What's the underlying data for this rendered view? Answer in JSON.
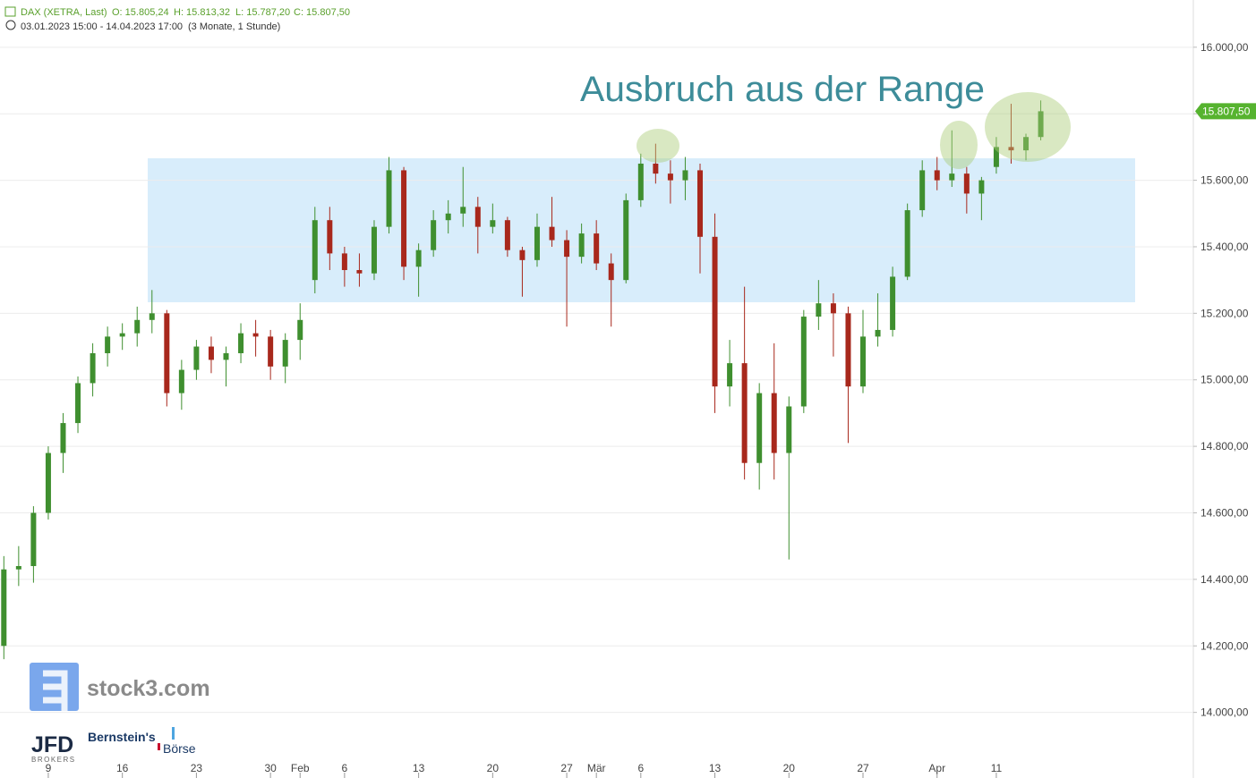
{
  "chart_data": {
    "type": "candlestick",
    "title": "DAX (XETRA, Last)",
    "ohlc_summary": [
      "O: 15.805,24",
      "H: 15.813,32",
      "L: 15.787,20",
      "C: 15.807,50"
    ],
    "period": "03.01.2023 15:00 - 14.04.2023 17:00",
    "interval": "(3 Monate, 1 Stunde)",
    "annotation": "Ausbruch aus der Range",
    "last_price": {
      "value": 15807.5,
      "label": "15.807,50"
    },
    "up_color": "#3f8f2f",
    "down_color": "#a8281c",
    "grid": true,
    "xlim": [
      0.74,
      81.3
    ],
    "ylim": [
      13870,
      16142
    ],
    "xticks": [
      {
        "value": 4,
        "label": "9"
      },
      {
        "value": 9,
        "label": "16"
      },
      {
        "value": 14,
        "label": "23"
      },
      {
        "value": 19,
        "label": "30"
      },
      {
        "value": 21,
        "label": "Feb"
      },
      {
        "value": 24,
        "label": "6"
      },
      {
        "value": 29,
        "label": "13"
      },
      {
        "value": 34,
        "label": "20"
      },
      {
        "value": 39,
        "label": "27"
      },
      {
        "value": 41,
        "label": "Mär"
      },
      {
        "value": 44,
        "label": "6"
      },
      {
        "value": 49,
        "label": "13"
      },
      {
        "value": 54,
        "label": "20"
      },
      {
        "value": 59,
        "label": "27"
      },
      {
        "value": 64,
        "label": "Apr"
      },
      {
        "value": 68,
        "label": "11"
      }
    ],
    "yticks": [
      {
        "value": 14000,
        "label": "14.000,00"
      },
      {
        "value": 14200,
        "label": "14.200,00"
      },
      {
        "value": 14400,
        "label": "14.400,00"
      },
      {
        "value": 14600,
        "label": "14.600,00"
      },
      {
        "value": 14800,
        "label": "14.800,00"
      },
      {
        "value": 15000,
        "label": "15.000,00"
      },
      {
        "value": 15200,
        "label": "15.200,00"
      },
      {
        "value": 15400,
        "label": "15.400,00"
      },
      {
        "value": 15600,
        "label": "15.600,00"
      },
      {
        "value": 15800,
        "label": "15.800,00"
      },
      {
        "value": 16000,
        "label": "16.000,00"
      }
    ],
    "x": [
      1,
      2,
      3,
      4,
      5,
      6,
      7,
      8,
      9,
      10,
      11,
      12,
      13,
      14,
      15,
      16,
      17,
      18,
      19,
      20,
      21,
      22,
      23,
      24,
      25,
      26,
      27,
      28,
      29,
      30,
      31,
      32,
      33,
      34,
      35,
      36,
      37,
      38,
      39,
      40,
      41,
      42,
      43,
      44,
      45,
      46,
      47,
      48,
      49,
      50,
      51,
      52,
      53,
      54,
      55,
      56,
      57,
      58,
      59,
      60,
      61,
      62,
      63,
      64,
      65,
      66,
      67,
      68,
      69,
      70,
      71
    ],
    "open": [
      14200,
      14430,
      14440,
      14600,
      14780,
      14870,
      14990,
      15080,
      15130,
      15140,
      15180,
      15200,
      14960,
      15030,
      15100,
      15060,
      15080,
      15140,
      15130,
      15040,
      15120,
      15300,
      15480,
      15380,
      15330,
      15320,
      15460,
      15630,
      15340,
      15390,
      15480,
      15500,
      15520,
      15460,
      15480,
      15390,
      15360,
      15460,
      15420,
      15370,
      15440,
      15350,
      15300,
      15540,
      15650,
      15620,
      15600,
      15630,
      15430,
      14980,
      15050,
      14750,
      14960,
      14780,
      14920,
      15190,
      15230,
      15200,
      14980,
      15130,
      15150,
      15310,
      15510,
      15630,
      15600,
      15620,
      15560,
      15640,
      15700,
      15690,
      15730
    ],
    "high": [
      14470,
      14500,
      14620,
      14800,
      14900,
      15010,
      15110,
      15160,
      15170,
      15220,
      15270,
      15210,
      15060,
      15120,
      15130,
      15100,
      15170,
      15180,
      15150,
      15140,
      15230,
      15520,
      15520,
      15400,
      15380,
      15480,
      15670,
      15640,
      15410,
      15510,
      15540,
      15640,
      15550,
      15530,
      15490,
      15400,
      15500,
      15550,
      15450,
      15470,
      15480,
      15380,
      15560,
      15680,
      15710,
      15660,
      15670,
      15650,
      15500,
      15120,
      15280,
      14990,
      15110,
      14950,
      15210,
      15300,
      15260,
      15220,
      15210,
      15260,
      15340,
      15530,
      15660,
      15670,
      15750,
      15640,
      15610,
      15730,
      15830,
      15740,
      15840
    ],
    "low": [
      14160,
      14380,
      14390,
      14580,
      14720,
      14840,
      14950,
      15040,
      15090,
      15100,
      15140,
      14920,
      14910,
      15000,
      15020,
      14980,
      15050,
      15070,
      15000,
      14990,
      15060,
      15260,
      15330,
      15280,
      15280,
      15300,
      15440,
      15300,
      15250,
      15370,
      15440,
      15460,
      15380,
      15440,
      15370,
      15250,
      15340,
      15400,
      15160,
      15350,
      15330,
      15160,
      15290,
      15520,
      15590,
      15530,
      15540,
      15320,
      14900,
      14920,
      14700,
      14670,
      14700,
      14460,
      14900,
      15150,
      15070,
      14810,
      14960,
      15100,
      15130,
      15300,
      15490,
      15570,
      15580,
      15500,
      15480,
      15620,
      15650,
      15660,
      15720
    ],
    "close": [
      14430,
      14440,
      14600,
      14780,
      14870,
      14990,
      15080,
      15130,
      15140,
      15180,
      15200,
      14960,
      15030,
      15100,
      15060,
      15080,
      15140,
      15130,
      15040,
      15120,
      15180,
      15480,
      15380,
      15330,
      15320,
      15460,
      15630,
      15340,
      15390,
      15480,
      15500,
      15520,
      15460,
      15480,
      15390,
      15360,
      15460,
      15420,
      15370,
      15440,
      15350,
      15300,
      15540,
      15650,
      15620,
      15600,
      15630,
      15430,
      14980,
      15050,
      14750,
      14960,
      14780,
      14920,
      15190,
      15230,
      15200,
      14980,
      15130,
      15150,
      15310,
      15510,
      15630,
      15600,
      15620,
      15560,
      15600,
      15700,
      15690,
      15730,
      15807.5
    ]
  },
  "logos": {
    "stock3": "stock3.com",
    "jfd": "JFD",
    "jfd_sub": "BROKERS",
    "bernstein": "Bernstein's",
    "boerse": "Börse"
  }
}
